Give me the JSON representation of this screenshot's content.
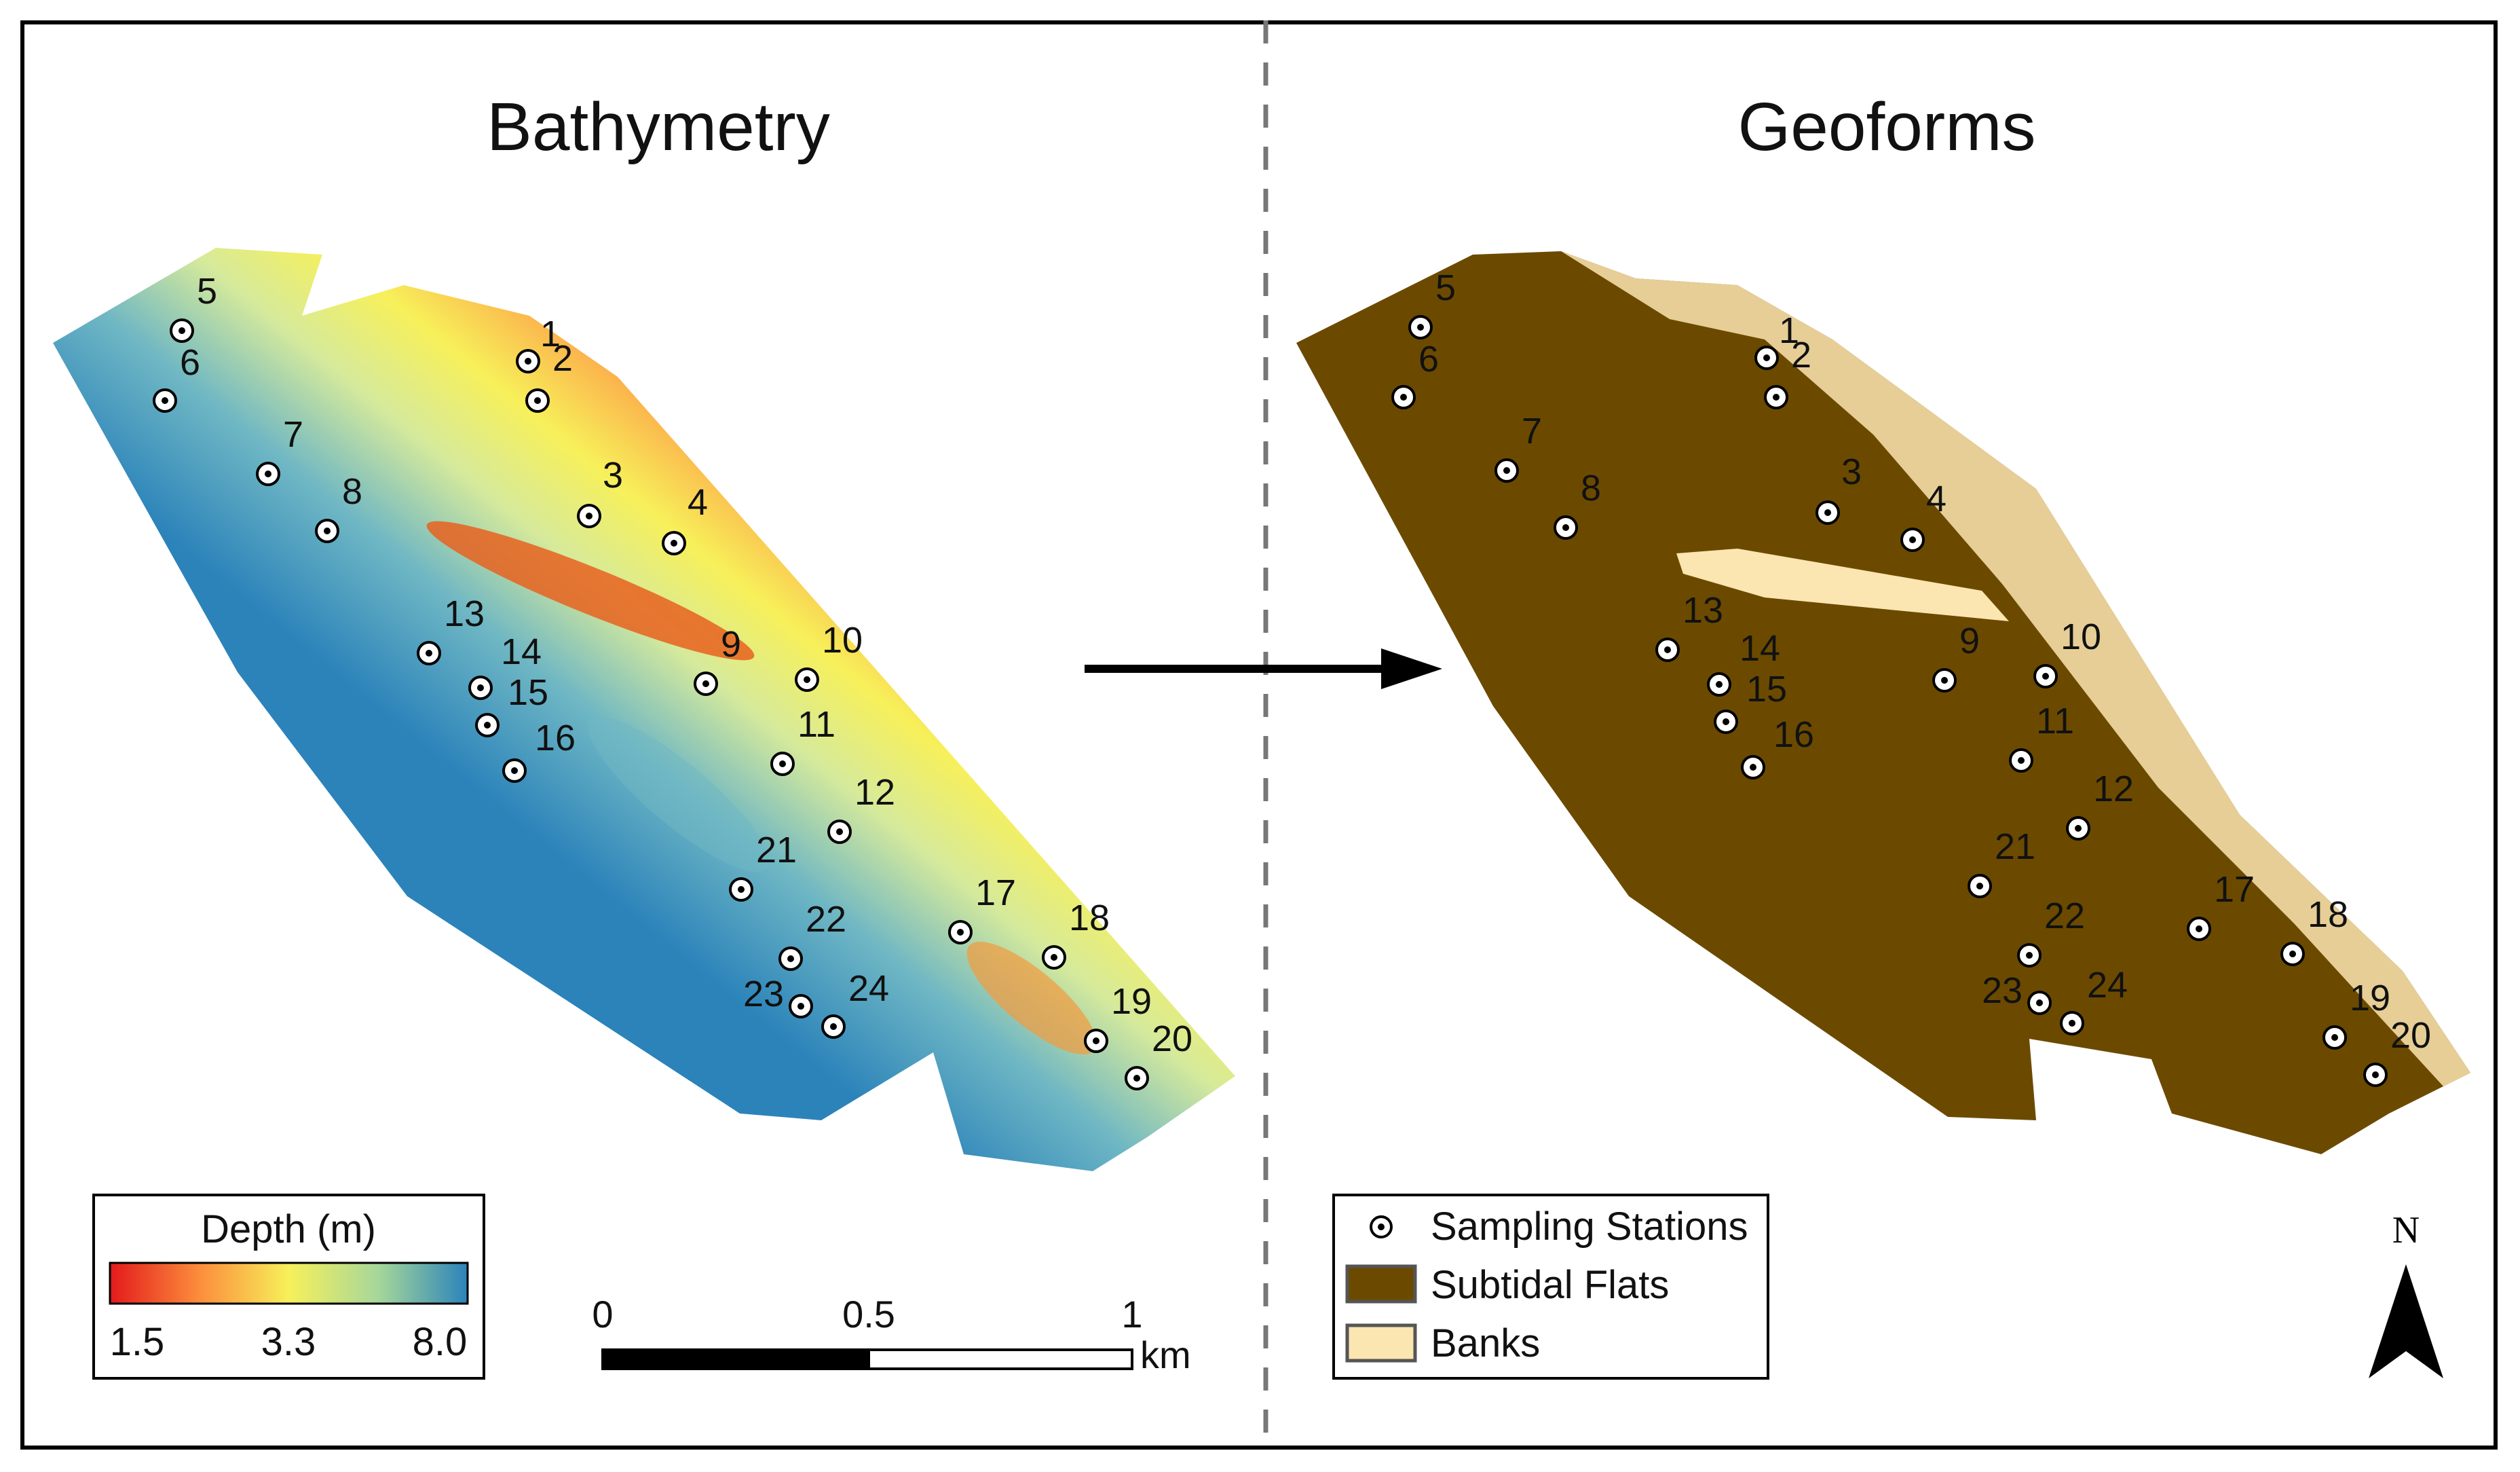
{
  "titles": {
    "left": "Bathymetry",
    "right": "Geoforms"
  },
  "colors": {
    "depth_shallow": "#e31a1c",
    "depth_mid": "#f2f05a",
    "depth_deep": "#2b83ba",
    "subtidal_flats": "#6b4a00",
    "banks": "#fbe5b0"
  },
  "depth_legend": {
    "title": "Depth (m)",
    "ticks": [
      "1.5",
      "3.3",
      "8.0"
    ]
  },
  "scale_bar": {
    "ticks": [
      "0",
      "0.5",
      "1"
    ],
    "unit": "km"
  },
  "geoform_legend": {
    "items": [
      "Sampling Stations",
      "Subtidal Flats",
      "Banks"
    ]
  },
  "north_arrow": {
    "label": "N"
  },
  "stations": [
    "1",
    "2",
    "3",
    "4",
    "5",
    "6",
    "7",
    "8",
    "9",
    "10",
    "11",
    "12",
    "13",
    "14",
    "15",
    "16",
    "17",
    "18",
    "19",
    "20",
    "21",
    "22",
    "23",
    "24"
  ]
}
